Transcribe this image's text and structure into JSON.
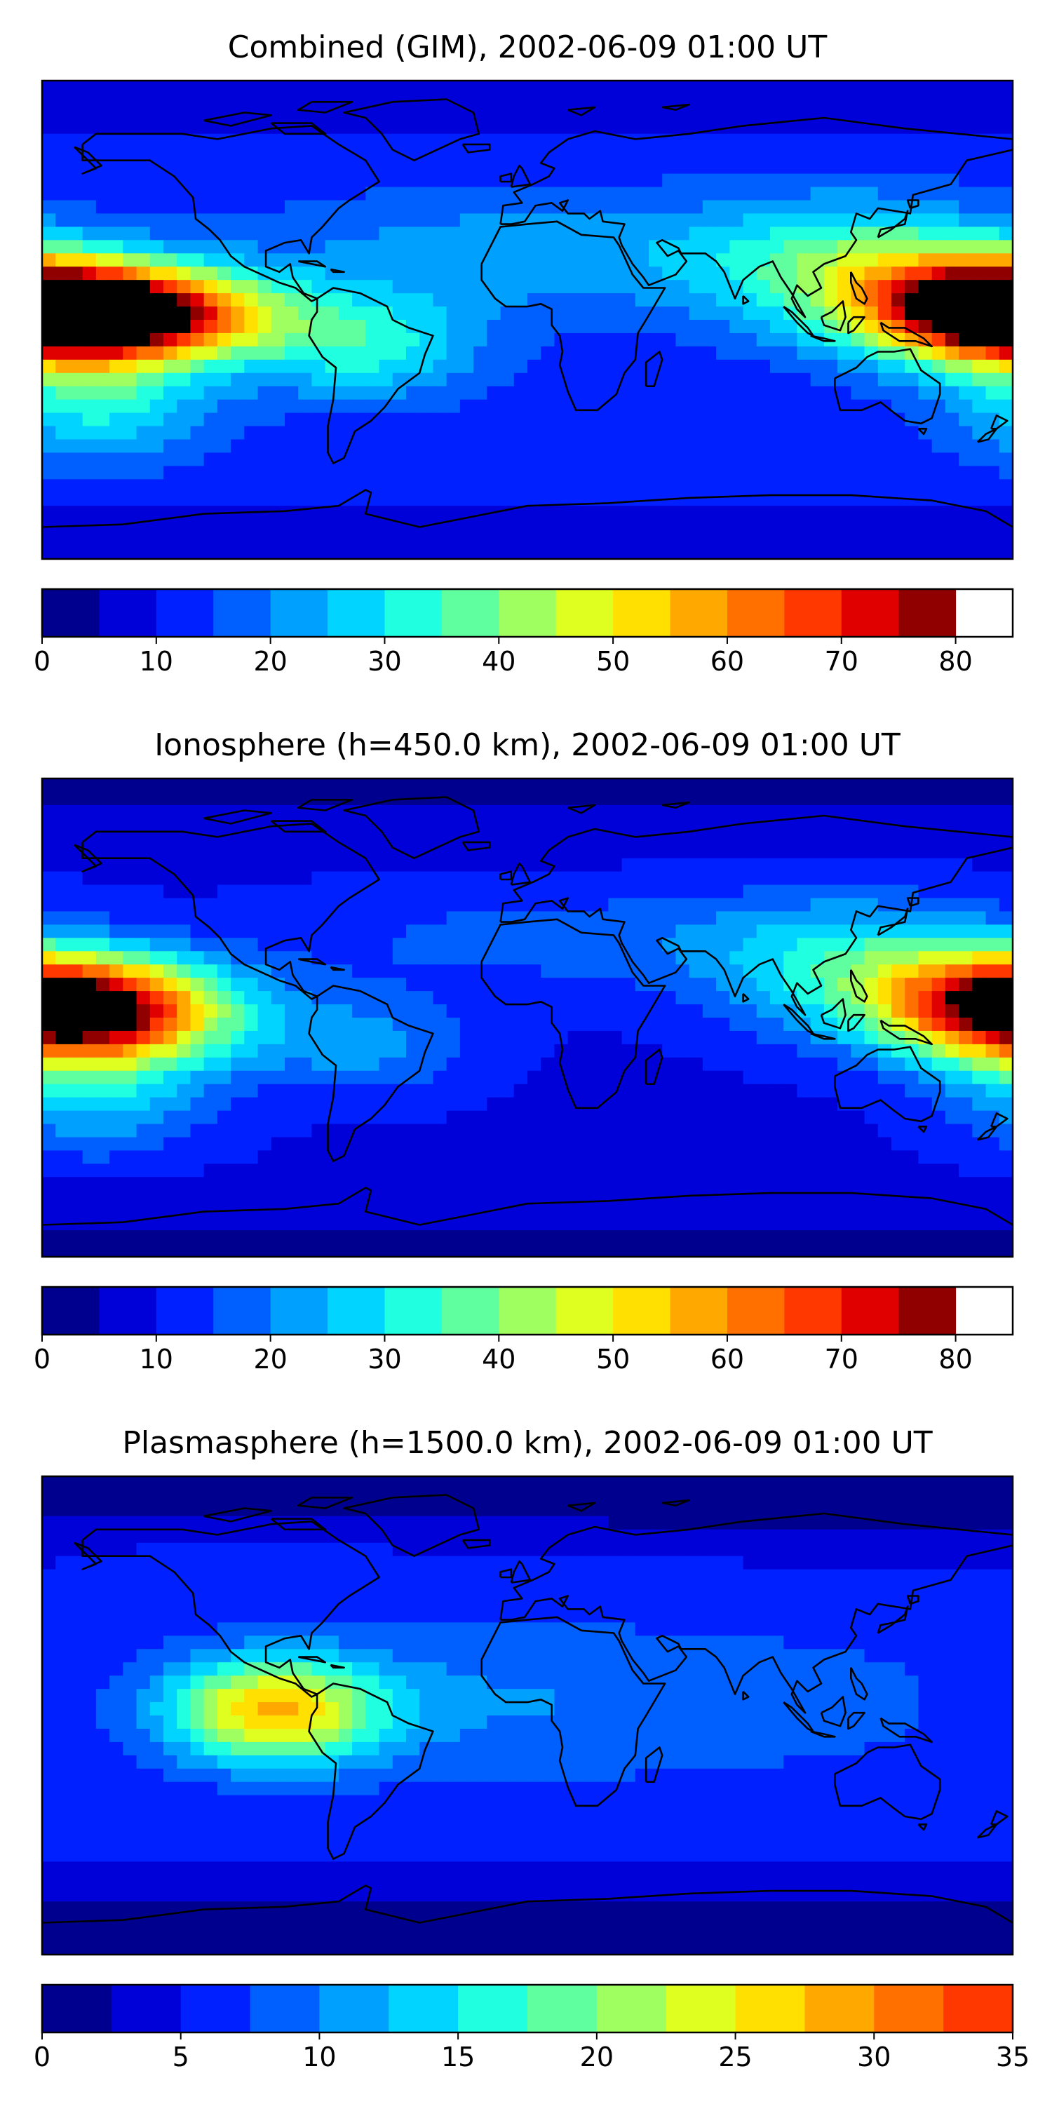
{
  "panels": [
    {
      "id": "combined",
      "title": "Combined (GIM), 2002-06-09 01:00 UT",
      "colorbar": {
        "min": 0,
        "max": 85,
        "step": 5,
        "ticks": [
          "0",
          "10",
          "20",
          "30",
          "40",
          "50",
          "60",
          "70",
          "80"
        ]
      },
      "field": {
        "background": 12,
        "blobs": [
          {
            "lon": -150,
            "lat": 2,
            "value": 72,
            "sx": 38,
            "sy": 12
          },
          {
            "lon": 170,
            "lat": 5,
            "value": 60,
            "sx": 34,
            "sy": 14
          },
          {
            "lon": 120,
            "lat": 20,
            "value": 25,
            "sx": 40,
            "sy": 18
          },
          {
            "lon": -60,
            "lat": -10,
            "value": 22,
            "sx": 30,
            "sy": 14
          },
          {
            "lon": -160,
            "lat": -30,
            "value": 22,
            "sx": 30,
            "sy": 16
          },
          {
            "lon": 0,
            "lat": 25,
            "value": 14,
            "sx": 70,
            "sy": 16
          }
        ]
      }
    },
    {
      "id": "ionosphere",
      "title": "Ionosphere  (h=450.0 km), 2002-06-09 01:00 UT",
      "colorbar": {
        "min": 0,
        "max": 85,
        "step": 5,
        "ticks": [
          "0",
          "10",
          "20",
          "30",
          "40",
          "50",
          "60",
          "70",
          "80"
        ]
      },
      "field": {
        "background": 9,
        "blobs": [
          {
            "lon": -155,
            "lat": 2,
            "value": 50,
            "sx": 36,
            "sy": 14
          },
          {
            "lon": 175,
            "lat": 5,
            "value": 50,
            "sx": 34,
            "sy": 14
          },
          {
            "lon": 120,
            "lat": 20,
            "value": 22,
            "sx": 40,
            "sy": 18
          },
          {
            "lon": -160,
            "lat": -30,
            "value": 18,
            "sx": 30,
            "sy": 16
          },
          {
            "lon": -60,
            "lat": -10,
            "value": 14,
            "sx": 30,
            "sy": 14
          },
          {
            "lon": 10,
            "lat": 30,
            "value": 10,
            "sx": 70,
            "sy": 14
          }
        ]
      }
    },
    {
      "id": "plasmasphere",
      "title": "Plasmasphere (h=1500.0 km), 2002-06-09 01:00 UT",
      "colorbar": {
        "min": 0,
        "max": 35,
        "step": 2.5,
        "ticks": [
          "0",
          "5",
          "10",
          "15",
          "20",
          "25",
          "30",
          "35"
        ]
      },
      "field": {
        "background": 5,
        "blobs": [
          {
            "lon": -95,
            "lat": 2,
            "value": 22,
            "sx": 28,
            "sy": 14
          },
          {
            "lon": 0,
            "lat": 5,
            "value": 6,
            "sx": 80,
            "sy": 25
          },
          {
            "lon": 120,
            "lat": 5,
            "value": 3,
            "sx": 40,
            "sy": 20
          },
          {
            "lon": -100,
            "lat": 60,
            "value": 3,
            "sx": 40,
            "sy": 10
          }
        ]
      }
    }
  ],
  "palette": [
    "#00008f",
    "#0000d9",
    "#0020ff",
    "#0060ff",
    "#00a0ff",
    "#00d4ff",
    "#20ffdf",
    "#5fffa0",
    "#9fff60",
    "#dfff20",
    "#ffe000",
    "#ffa800",
    "#ff7000",
    "#ff3800",
    "#e00000",
    "#900000"
  ]
}
